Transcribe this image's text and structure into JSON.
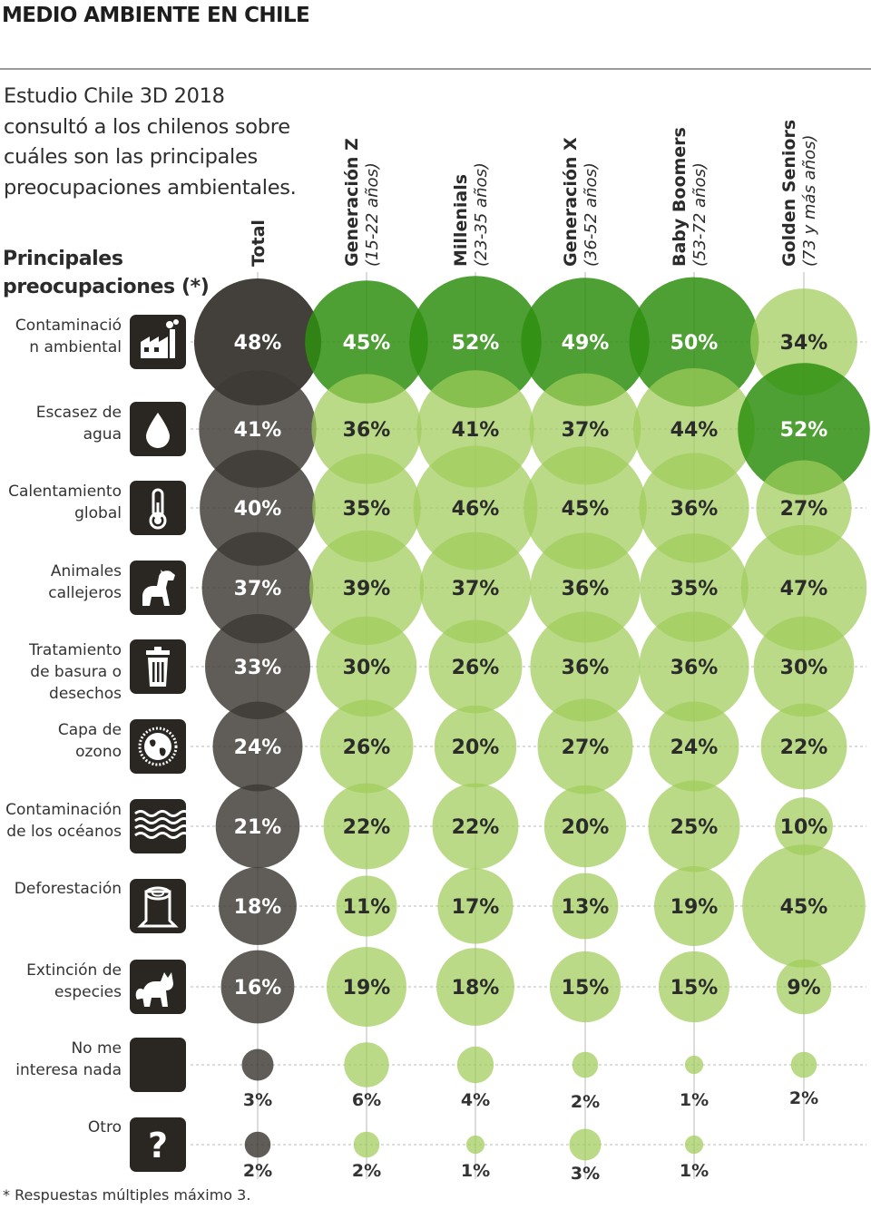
{
  "header": {
    "title": "MEDIO AMBIENTE EN CHILE"
  },
  "intro": "Estudio Chile 3D 2018 consultó a los chilenos sobre cuáles son las principales preocupaciones ambientales.",
  "section_label": "Principales preocupaciones (*)",
  "footnote": "* Respuestas múltiples máximo 3.",
  "colors": {
    "total": "#3d3935",
    "strong_green": "#2f8f10",
    "light_green": "#9fcc5a"
  },
  "icons": [
    "factory-icon",
    "water-drop-icon",
    "thermometer-icon",
    "dog-icon",
    "trash-can-icon",
    "globe-icon",
    "waves-icon",
    "tree-stump-icon",
    "fox-icon",
    "blank-icon",
    "question-icon"
  ],
  "chart_data": {
    "type": "bubble-matrix",
    "columns": [
      {
        "name": "Total",
        "sub": ""
      },
      {
        "name": "Generación Z",
        "sub": "(15-22 años)"
      },
      {
        "name": "Millenials",
        "sub": "(23-35 años)"
      },
      {
        "name": "Generación X",
        "sub": "(36-52 años)"
      },
      {
        "name": "Baby Boomers",
        "sub": "(53-72 años)"
      },
      {
        "name": "Golden Seniors",
        "sub": "(73 y más años)"
      }
    ],
    "rows": [
      {
        "label": "Contaminación ambiental",
        "values": [
          48,
          45,
          52,
          49,
          50,
          34
        ]
      },
      {
        "label": "Escasez de agua",
        "values": [
          41,
          36,
          41,
          37,
          44,
          52
        ]
      },
      {
        "label": "Calentamiento global",
        "values": [
          40,
          35,
          46,
          45,
          36,
          27
        ]
      },
      {
        "label": "Animales callejeros",
        "values": [
          37,
          39,
          37,
          36,
          35,
          47
        ]
      },
      {
        "label": "Tratamiento de basura o desechos",
        "values": [
          33,
          30,
          26,
          36,
          36,
          30
        ]
      },
      {
        "label": "Capa de ozono",
        "values": [
          24,
          26,
          20,
          27,
          24,
          22
        ]
      },
      {
        "label": "Contaminación de los océanos",
        "values": [
          21,
          22,
          22,
          20,
          25,
          10
        ]
      },
      {
        "label": "Deforestación",
        "values": [
          18,
          11,
          17,
          13,
          19,
          45
        ]
      },
      {
        "label": "Extinción de especies",
        "values": [
          16,
          19,
          18,
          15,
          15,
          9
        ]
      },
      {
        "label": "No me interesa nada",
        "values": [
          3,
          6,
          4,
          2,
          1,
          2
        ]
      },
      {
        "label": "Otro",
        "values": [
          2,
          2,
          1,
          3,
          1,
          null
        ]
      }
    ],
    "value_suffix": "%",
    "highlight": "Mayor preocupación de cada grupo en verde intenso"
  }
}
